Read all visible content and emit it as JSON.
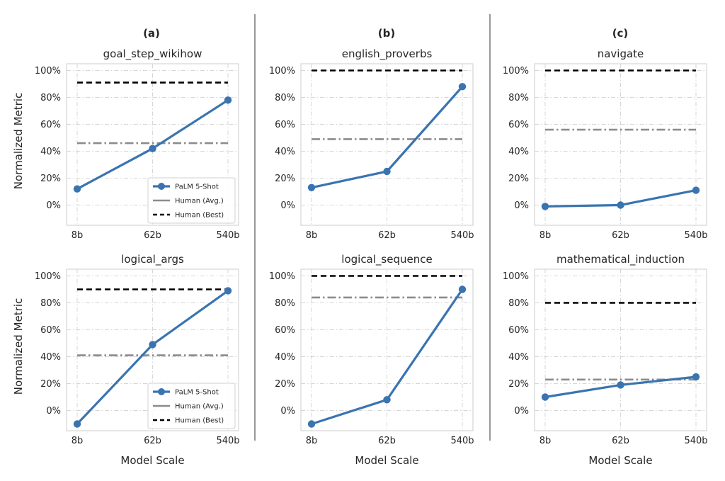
{
  "columns": [
    "(a)",
    "(b)",
    "(c)"
  ],
  "colors": {
    "palm": "#3a74b0",
    "human_avg": "#8c8c8c",
    "human_best": "#000000"
  },
  "legend_entries": [
    "PaLM 5-Shot",
    "Human (Avg.)",
    "Human (Best)"
  ],
  "chart_data": [
    {
      "type": "line",
      "title": "goal_step_wikihow",
      "column": 0,
      "row": 0,
      "ylabel": "Normalized Metric",
      "xlabel": "",
      "categories": [
        "8b",
        "62b",
        "540b"
      ],
      "yticks": [
        "0%",
        "20%",
        "40%",
        "60%",
        "80%",
        "100%"
      ],
      "ylim": [
        -15,
        105
      ],
      "grid": true,
      "legend": "lower right",
      "series": [
        {
          "name": "PaLM 5-Shot",
          "values": [
            12,
            42,
            78
          ]
        },
        {
          "name": "Human (Avg.)",
          "values": [
            46,
            46,
            46
          ]
        },
        {
          "name": "Human (Best)",
          "values": [
            91,
            91,
            91
          ]
        }
      ]
    },
    {
      "type": "line",
      "title": "english_proverbs",
      "column": 1,
      "row": 0,
      "ylabel": "",
      "xlabel": "",
      "categories": [
        "8b",
        "62b",
        "540b"
      ],
      "yticks": [
        "0%",
        "20%",
        "40%",
        "60%",
        "80%",
        "100%"
      ],
      "ylim": [
        -15,
        105
      ],
      "grid": true,
      "series": [
        {
          "name": "PaLM 5-Shot",
          "values": [
            13,
            25,
            88
          ]
        },
        {
          "name": "Human (Avg.)",
          "values": [
            49,
            49,
            49
          ]
        },
        {
          "name": "Human (Best)",
          "values": [
            100,
            100,
            100
          ]
        }
      ]
    },
    {
      "type": "line",
      "title": "navigate",
      "column": 2,
      "row": 0,
      "ylabel": "",
      "xlabel": "",
      "categories": [
        "8b",
        "62b",
        "540b"
      ],
      "yticks": [
        "0%",
        "20%",
        "40%",
        "60%",
        "80%",
        "100%"
      ],
      "ylim": [
        -15,
        105
      ],
      "grid": true,
      "series": [
        {
          "name": "PaLM 5-Shot",
          "values": [
            -1,
            0,
            11
          ]
        },
        {
          "name": "Human (Avg.)",
          "values": [
            56,
            56,
            56
          ]
        },
        {
          "name": "Human (Best)",
          "values": [
            100,
            100,
            100
          ]
        }
      ]
    },
    {
      "type": "line",
      "title": "logical_args",
      "column": 0,
      "row": 1,
      "ylabel": "Normalized Metric",
      "xlabel": "Model Scale",
      "categories": [
        "8b",
        "62b",
        "540b"
      ],
      "yticks": [
        "0%",
        "20%",
        "40%",
        "60%",
        "80%",
        "100%"
      ],
      "ylim": [
        -15,
        105
      ],
      "grid": true,
      "legend": "lower right",
      "series": [
        {
          "name": "PaLM 5-Shot",
          "values": [
            -10,
            49,
            89
          ]
        },
        {
          "name": "Human (Avg.)",
          "values": [
            41,
            41,
            41
          ]
        },
        {
          "name": "Human (Best)",
          "values": [
            90,
            90,
            90
          ]
        }
      ]
    },
    {
      "type": "line",
      "title": "logical_sequence",
      "column": 1,
      "row": 1,
      "ylabel": "",
      "xlabel": "Model Scale",
      "categories": [
        "8b",
        "62b",
        "540b"
      ],
      "yticks": [
        "0%",
        "20%",
        "40%",
        "60%",
        "80%",
        "100%"
      ],
      "ylim": [
        -15,
        105
      ],
      "grid": true,
      "series": [
        {
          "name": "PaLM 5-Shot",
          "values": [
            -10,
            8,
            90
          ]
        },
        {
          "name": "Human (Avg.)",
          "values": [
            84,
            84,
            84
          ]
        },
        {
          "name": "Human (Best)",
          "values": [
            100,
            100,
            100
          ]
        }
      ]
    },
    {
      "type": "line",
      "title": "mathematical_induction",
      "column": 2,
      "row": 1,
      "ylabel": "",
      "xlabel": "Model Scale",
      "categories": [
        "8b",
        "62b",
        "540b"
      ],
      "yticks": [
        "0%",
        "20%",
        "40%",
        "60%",
        "80%",
        "100%"
      ],
      "ylim": [
        -15,
        105
      ],
      "grid": true,
      "series": [
        {
          "name": "PaLM 5-Shot",
          "values": [
            10,
            19,
            25
          ]
        },
        {
          "name": "Human (Avg.)",
          "values": [
            23,
            23,
            23
          ]
        },
        {
          "name": "Human (Best)",
          "values": [
            80,
            80,
            80
          ]
        }
      ]
    }
  ]
}
